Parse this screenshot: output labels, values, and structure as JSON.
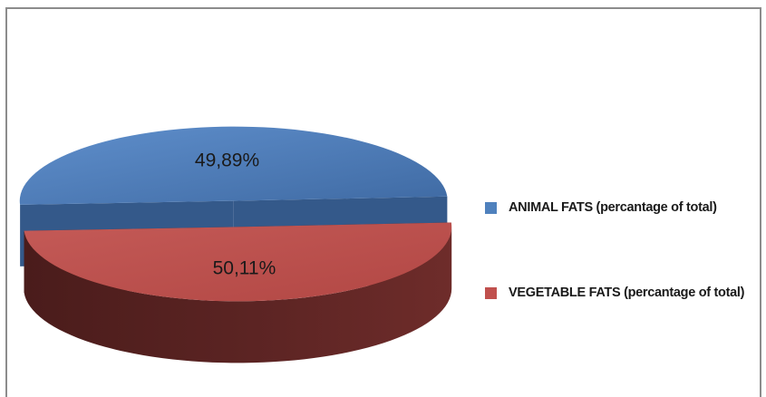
{
  "chart_data": {
    "type": "pie",
    "title": "",
    "categories": [
      "ANIMAL FATS (percantage of total)",
      "VEGETABLE FATS (percantage of total)"
    ],
    "values": [
      49.89,
      50.11
    ],
    "data_labels": [
      "49,89%",
      "50,11%"
    ],
    "colors": [
      "#4f81bd",
      "#c0504d"
    ],
    "three_d": true,
    "exploded": true,
    "legend_position": "right"
  }
}
